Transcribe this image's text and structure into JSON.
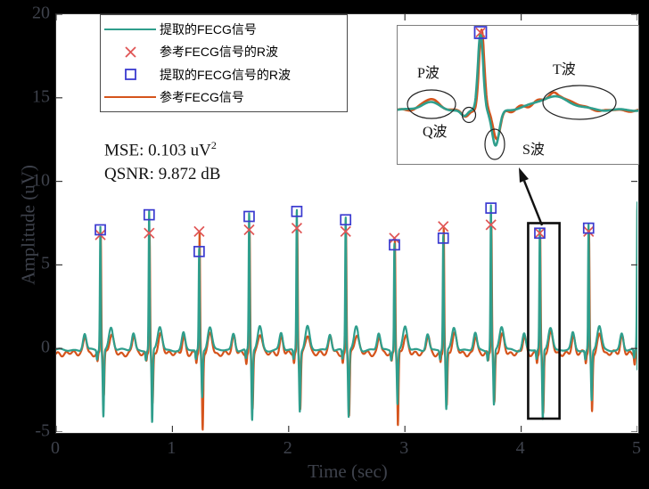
{
  "figure": {
    "background": "#000000",
    "plot_background": "#ffffff"
  },
  "axes": {
    "xlabel": "Time (sec)",
    "ylabel": "Amplitude (uV)",
    "xtick_labels": [
      "0",
      "1",
      "2",
      "3",
      "4",
      "5"
    ],
    "ytick_labels": [
      "20",
      "15",
      "10",
      "5",
      "0",
      "-5"
    ],
    "xticks": [
      0,
      1,
      2,
      3,
      4,
      5
    ],
    "yticks": [
      20,
      15,
      10,
      5,
      0,
      -5
    ],
    "text_color": "#3e424c"
  },
  "legend": {
    "items": [
      {
        "type": "line",
        "color": "#2f9e8c",
        "label": "提取的FECG信号"
      },
      {
        "type": "x-marker",
        "color": "#e05555",
        "label": "参考FECG信号的R波"
      },
      {
        "type": "square-marker",
        "color": "#3a3ad0",
        "label": "提取的FECG信号的R波"
      },
      {
        "type": "line",
        "color": "#d5541c",
        "label": "参考FECG信号"
      }
    ]
  },
  "metrics": {
    "mse_prefix": "MSE: 0.103 uV",
    "mse_sup": "2",
    "qsnr": "QSNR: 9.872 dB"
  },
  "chart_data": {
    "type": "line",
    "title": "",
    "xlabel": "Time (sec)",
    "ylabel": "Amplitude (uV)",
    "xlim": [
      0,
      5
    ],
    "ylim": [
      -5,
      20
    ],
    "grid": false,
    "legend_position": "top-left",
    "beat_times": [
      0.38,
      0.8,
      1.23,
      1.66,
      2.07,
      2.49,
      2.91,
      3.33,
      3.74,
      4.16,
      4.58,
      5.0
    ],
    "series": [
      {
        "name": "提取的FECG信号",
        "color": "#2f9e8c",
        "r_peaks": [
          7.1,
          8.0,
          5.8,
          7.9,
          8.2,
          7.7,
          6.2,
          6.6,
          8.4,
          6.9,
          7.2,
          8.5
        ],
        "s_dips": [
          -4.0,
          -4.4,
          -2.8,
          -4.2,
          -3.6,
          -4.0,
          -3.2,
          -3.6,
          -3.3,
          -4.2,
          -3.0,
          -2.5
        ]
      },
      {
        "name": "参考FECG信号",
        "color": "#d5541c",
        "r_peaks": [
          6.8,
          6.9,
          7.0,
          7.1,
          7.2,
          7.0,
          6.6,
          7.3,
          7.4,
          6.9,
          7.0,
          8.3
        ],
        "s_dips": [
          -2.6,
          -3.0,
          -4.6,
          -3.2,
          -3.3,
          -3.7,
          -4.4,
          -3.2,
          -3.0,
          -3.6,
          -3.4,
          -2.3
        ]
      }
    ],
    "markers": [
      {
        "name": "参考FECG信号的R波",
        "shape": "x",
        "color": "#e05555",
        "x": [
          0.38,
          0.8,
          1.23,
          1.66,
          2.07,
          2.49,
          2.91,
          3.33,
          3.74,
          4.16,
          4.58
        ],
        "y": [
          6.8,
          6.9,
          7.0,
          7.1,
          7.2,
          7.0,
          6.6,
          7.3,
          7.4,
          6.9,
          7.0
        ]
      },
      {
        "name": "提取的FECG信号的R波",
        "shape": "square",
        "color": "#3a3ad0",
        "x": [
          0.38,
          0.8,
          1.23,
          1.66,
          2.07,
          2.49,
          2.91,
          3.33,
          3.74,
          4.16,
          4.58
        ],
        "y": [
          7.1,
          8.0,
          5.8,
          7.9,
          8.2,
          7.7,
          6.2,
          6.6,
          8.4,
          6.9,
          7.2
        ]
      }
    ],
    "annotation_rect": {
      "x0": 4.06,
      "x1": 4.33,
      "y0": -4.2,
      "y1": 7.5
    },
    "inset": {
      "labels": {
        "p": "P波",
        "q": "Q波",
        "s": "S波",
        "t": "T波"
      }
    }
  }
}
